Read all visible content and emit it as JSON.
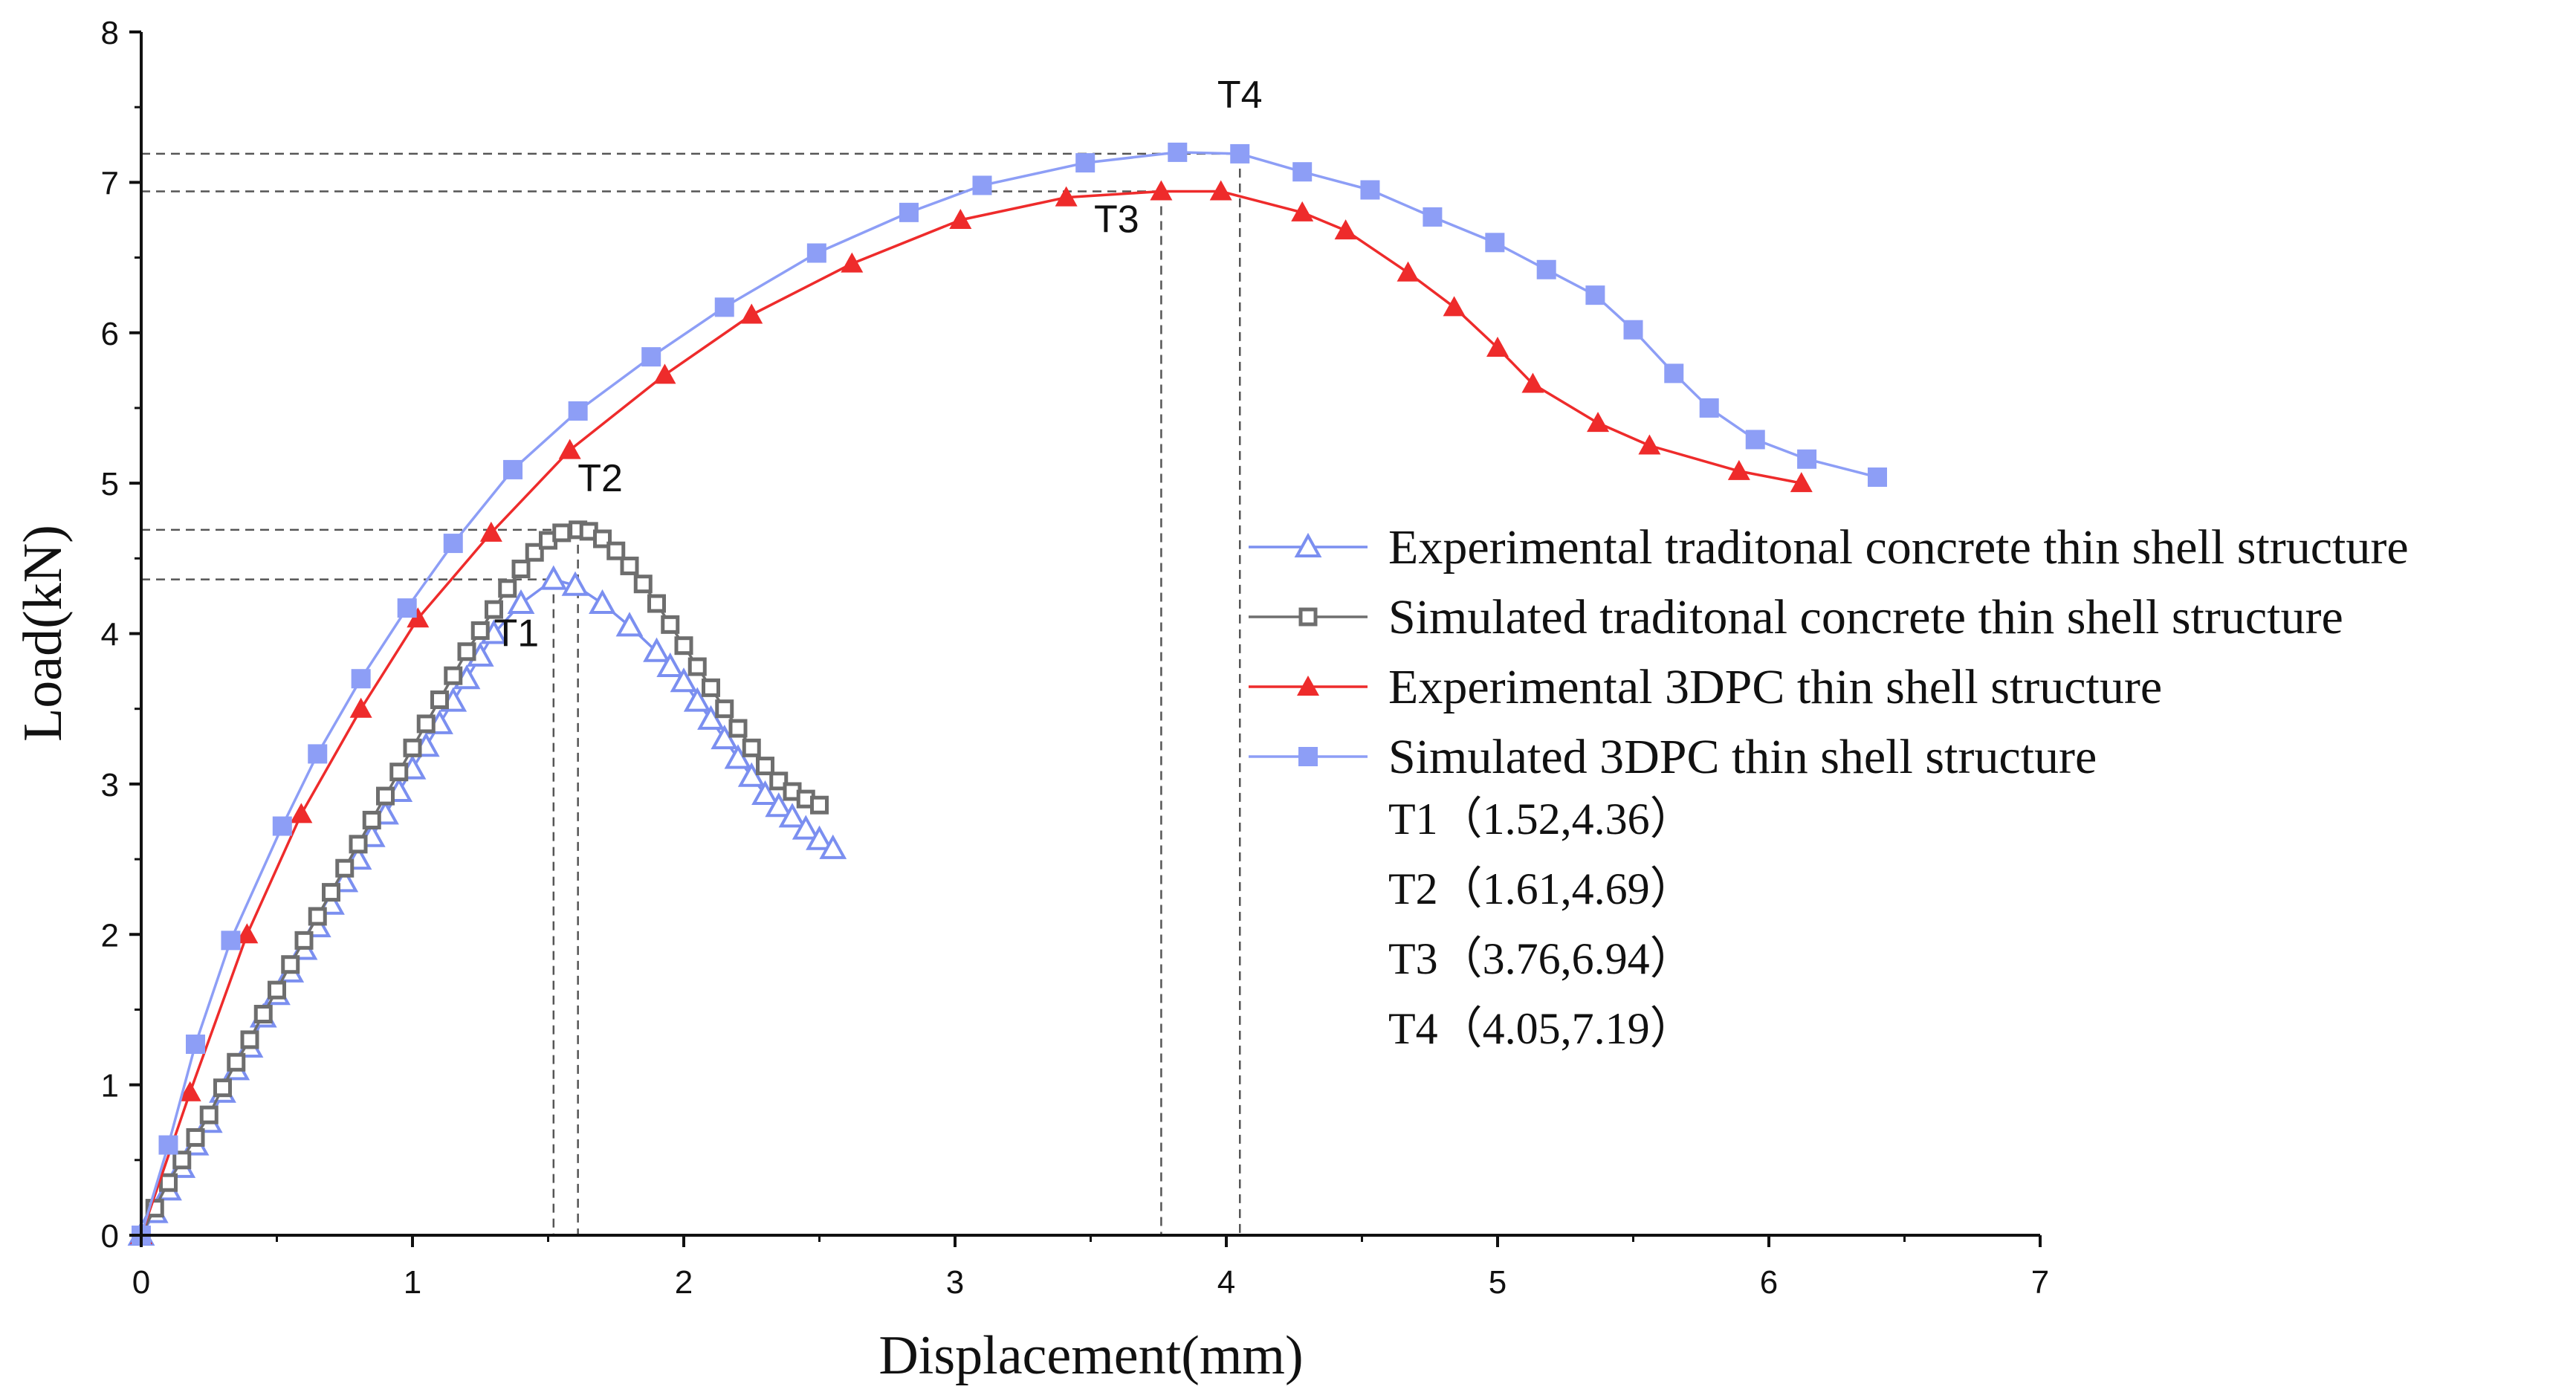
{
  "chart_data": {
    "type": "line",
    "xlabel": "Displacement(mm)",
    "ylabel": "Load(kN)",
    "xlim": [
      0,
      7
    ],
    "ylim": [
      0,
      8
    ],
    "xticks": [
      "0",
      "1",
      "2",
      "3",
      "4",
      "5",
      "6",
      "7"
    ],
    "yticks": [
      "0",
      "1",
      "2",
      "3",
      "4",
      "5",
      "6",
      "7",
      "8"
    ],
    "legend_position": "right",
    "series": [
      {
        "name": "Experimental traditonal concrete thin shell structure",
        "color": "#7b8ff0",
        "marker": "triangle-open",
        "x": [
          0.0,
          0.05,
          0.1,
          0.15,
          0.2,
          0.25,
          0.3,
          0.35,
          0.4,
          0.45,
          0.5,
          0.55,
          0.6,
          0.65,
          0.7,
          0.75,
          0.8,
          0.85,
          0.9,
          0.95,
          1.0,
          1.05,
          1.1,
          1.15,
          1.2,
          1.25,
          1.3,
          1.4,
          1.52,
          1.6,
          1.7,
          1.8,
          1.9,
          1.95,
          2.0,
          2.05,
          2.1,
          2.15,
          2.2,
          2.25,
          2.3,
          2.35,
          2.4,
          2.45,
          2.5,
          2.55
        ],
        "y": [
          0.0,
          0.15,
          0.3,
          0.45,
          0.6,
          0.75,
          0.95,
          1.1,
          1.25,
          1.45,
          1.6,
          1.75,
          1.9,
          2.05,
          2.2,
          2.35,
          2.5,
          2.65,
          2.8,
          2.95,
          3.1,
          3.25,
          3.4,
          3.55,
          3.7,
          3.85,
          4.0,
          4.2,
          4.36,
          4.32,
          4.2,
          4.05,
          3.88,
          3.78,
          3.68,
          3.55,
          3.43,
          3.3,
          3.17,
          3.05,
          2.93,
          2.85,
          2.78,
          2.7,
          2.63,
          2.57
        ]
      },
      {
        "name": "Simulated traditonal concrete thin shell structure",
        "color": "#6e6e6e",
        "marker": "square-open",
        "x": [
          0.0,
          0.05,
          0.1,
          0.15,
          0.2,
          0.25,
          0.3,
          0.35,
          0.4,
          0.45,
          0.5,
          0.55,
          0.6,
          0.65,
          0.7,
          0.75,
          0.8,
          0.85,
          0.9,
          0.95,
          1.0,
          1.05,
          1.1,
          1.15,
          1.2,
          1.25,
          1.3,
          1.35,
          1.4,
          1.45,
          1.5,
          1.55,
          1.61,
          1.65,
          1.7,
          1.75,
          1.8,
          1.85,
          1.9,
          1.95,
          2.0,
          2.05,
          2.1,
          2.15,
          2.2,
          2.25,
          2.3,
          2.35,
          2.4,
          2.45,
          2.5
        ],
        "y": [
          0.0,
          0.18,
          0.35,
          0.5,
          0.65,
          0.8,
          0.98,
          1.15,
          1.3,
          1.47,
          1.63,
          1.8,
          1.96,
          2.12,
          2.28,
          2.44,
          2.6,
          2.76,
          2.92,
          3.08,
          3.24,
          3.4,
          3.56,
          3.72,
          3.88,
          4.02,
          4.16,
          4.3,
          4.43,
          4.54,
          4.62,
          4.67,
          4.69,
          4.68,
          4.63,
          4.55,
          4.45,
          4.33,
          4.2,
          4.06,
          3.92,
          3.78,
          3.64,
          3.5,
          3.37,
          3.24,
          3.12,
          3.02,
          2.95,
          2.9,
          2.86
        ]
      },
      {
        "name": "Experimental 3DPC  thin shell structure",
        "color": "#ee2b2b",
        "marker": "triangle-filled",
        "x": [
          0.0,
          0.18,
          0.39,
          0.59,
          0.81,
          1.02,
          1.29,
          1.58,
          1.93,
          2.25,
          2.62,
          3.02,
          3.41,
          3.76,
          3.98,
          4.28,
          4.44,
          4.67,
          4.84,
          5.0,
          5.13,
          5.37,
          5.56,
          5.89,
          6.12
        ],
        "y": [
          0.0,
          0.95,
          2.0,
          2.8,
          3.5,
          4.1,
          4.67,
          5.22,
          5.72,
          6.12,
          6.46,
          6.75,
          6.9,
          6.94,
          6.94,
          6.8,
          6.68,
          6.4,
          6.17,
          5.9,
          5.66,
          5.4,
          5.25,
          5.08,
          5.0
        ]
      },
      {
        "name": "Simulated 3DPC  thin shell structure",
        "color": "#8d9ef6",
        "marker": "square-filled",
        "x": [
          0.0,
          0.1,
          0.2,
          0.33,
          0.52,
          0.65,
          0.81,
          0.98,
          1.15,
          1.37,
          1.61,
          1.88,
          2.15,
          2.49,
          2.83,
          3.1,
          3.48,
          3.82,
          4.05,
          4.28,
          4.53,
          4.76,
          4.99,
          5.18,
          5.36,
          5.5,
          5.65,
          5.78,
          5.95,
          6.14,
          6.4
        ],
        "y": [
          0.0,
          0.6,
          1.27,
          1.96,
          2.72,
          3.2,
          3.7,
          4.17,
          4.6,
          5.09,
          5.48,
          5.84,
          6.17,
          6.53,
          6.8,
          6.98,
          7.13,
          7.2,
          7.19,
          7.07,
          6.95,
          6.77,
          6.6,
          6.42,
          6.25,
          6.02,
          5.73,
          5.5,
          5.29,
          5.16,
          5.04
        ]
      }
    ],
    "peak_annotations": [
      {
        "label": "T1",
        "x": 1.52,
        "y": 4.36,
        "text": "T1（1.52,4.36）"
      },
      {
        "label": "T2",
        "x": 1.61,
        "y": 4.69,
        "text": "T2（1.61,4.69）"
      },
      {
        "label": "T3",
        "x": 3.76,
        "y": 6.94,
        "text": "T3（3.76,6.94）"
      },
      {
        "label": "T4",
        "x": 4.05,
        "y": 7.19,
        "text": "T4（4.05,7.19）"
      }
    ]
  }
}
